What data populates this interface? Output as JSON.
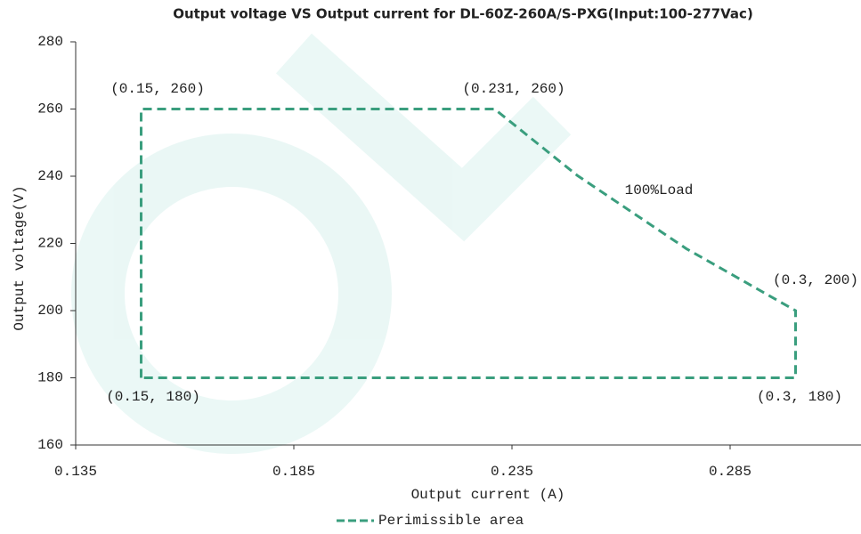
{
  "chart_data": {
    "type": "line",
    "title": "Output voltage VS Output current for DL-60Z-260A/S-PXG(Input:100-277Vac)",
    "x_label": "Output current (A)",
    "y_label": "Output voltage(V)",
    "x": [
      0.15,
      0.15,
      0.231,
      0.25,
      0.275,
      0.3,
      0.3,
      0.15
    ],
    "series": [
      {
        "name": "Perimissible area",
        "color": "#3a9e7e",
        "line_style": "dashed",
        "values": [
          180,
          260,
          260,
          240.2,
          218.4,
          200,
          180,
          180
        ]
      }
    ],
    "xlim": [
      0.135,
      0.315
    ],
    "xticks": [
      {
        "value": 0.135,
        "label": "0.135"
      },
      {
        "value": 0.185,
        "label": "0.185"
      },
      {
        "value": 0.235,
        "label": "0.235"
      },
      {
        "value": 0.285,
        "label": "0.285"
      }
    ],
    "ylim": [
      160,
      280
    ],
    "yticks": [
      160,
      180,
      200,
      220,
      240,
      260,
      280
    ],
    "grid": false,
    "legend": "bottom",
    "annotations": [
      "(0.15, 260)",
      "(0.231, 260)",
      "100%Load",
      "(0.3, 200)",
      "(0.15, 180)",
      "(0.3, 180)"
    ]
  }
}
